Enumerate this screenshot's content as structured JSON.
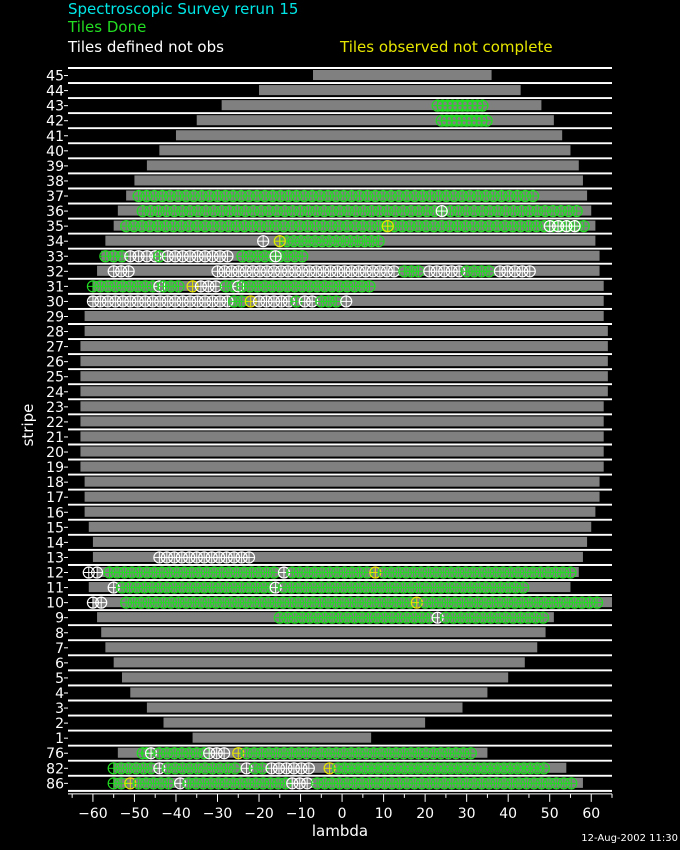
{
  "chart_data": {
    "type": "scatter",
    "title": "Spectroscopic Survey rerun 15",
    "legend": {
      "done": "Tiles Done",
      "defined_not_obs": "Tiles defined not obs",
      "observed_not_complete": "Tiles observed not complete"
    },
    "colors": {
      "background": "#000000",
      "title": "#00e6e6",
      "done": "#22dd22",
      "defined_not_obs": "#ffffff",
      "observed_not_complete": "#e6e600",
      "stripe_band": "#808080"
    },
    "xlabel": "lambda",
    "ylabel": "stripe",
    "timestamp": "12-Aug-2002 11:30",
    "xlim": [
      -66,
      65
    ],
    "xticks": [
      -60,
      -50,
      -40,
      -30,
      -20,
      -10,
      0,
      10,
      20,
      30,
      40,
      50,
      60
    ],
    "stripes": [
      {
        "label": "45",
        "range": [
          -7,
          36
        ]
      },
      {
        "label": "44",
        "range": [
          -20,
          43
        ]
      },
      {
        "label": "43",
        "range": [
          -29,
          48
        ]
      },
      {
        "label": "42",
        "range": [
          -35,
          51
        ]
      },
      {
        "label": "41",
        "range": [
          -40,
          53
        ]
      },
      {
        "label": "40",
        "range": [
          -44,
          55
        ]
      },
      {
        "label": "39",
        "range": [
          -47,
          57
        ]
      },
      {
        "label": "38",
        "range": [
          -50,
          58
        ]
      },
      {
        "label": "37",
        "range": [
          -52,
          59
        ]
      },
      {
        "label": "36",
        "range": [
          -54,
          60
        ]
      },
      {
        "label": "35",
        "range": [
          -55,
          61
        ]
      },
      {
        "label": "34",
        "range": [
          -57,
          61
        ]
      },
      {
        "label": "33",
        "range": [
          -58,
          62
        ]
      },
      {
        "label": "32",
        "range": [
          -59,
          62
        ]
      },
      {
        "label": "31",
        "range": [
          -60,
          63
        ]
      },
      {
        "label": "30",
        "range": [
          -61,
          63
        ]
      },
      {
        "label": "29",
        "range": [
          -62,
          63
        ]
      },
      {
        "label": "28",
        "range": [
          -62,
          64
        ]
      },
      {
        "label": "27",
        "range": [
          -63,
          64
        ]
      },
      {
        "label": "26",
        "range": [
          -63,
          64
        ]
      },
      {
        "label": "25",
        "range": [
          -63,
          64
        ]
      },
      {
        "label": "24",
        "range": [
          -63,
          64
        ]
      },
      {
        "label": "23",
        "range": [
          -63,
          63
        ]
      },
      {
        "label": "22",
        "range": [
          -63,
          63
        ]
      },
      {
        "label": "21",
        "range": [
          -63,
          63
        ]
      },
      {
        "label": "20",
        "range": [
          -63,
          63
        ]
      },
      {
        "label": "19",
        "range": [
          -63,
          63
        ]
      },
      {
        "label": "18",
        "range": [
          -62,
          62
        ]
      },
      {
        "label": "17",
        "range": [
          -62,
          62
        ]
      },
      {
        "label": "16",
        "range": [
          -62,
          61
        ]
      },
      {
        "label": "15",
        "range": [
          -61,
          60
        ]
      },
      {
        "label": "14",
        "range": [
          -60,
          59
        ]
      },
      {
        "label": "13",
        "range": [
          -60,
          58
        ]
      },
      {
        "label": "12",
        "range": [
          -59,
          57
        ]
      },
      {
        "label": "11",
        "range": [
          -61,
          55
        ]
      },
      {
        "label": "10",
        "range": [
          -60,
          65
        ]
      },
      {
        "label": "9",
        "range": [
          -59,
          51
        ]
      },
      {
        "label": "8",
        "range": [
          -58,
          49
        ]
      },
      {
        "label": "7",
        "range": [
          -57,
          47
        ]
      },
      {
        "label": "6",
        "range": [
          -55,
          44
        ]
      },
      {
        "label": "5",
        "range": [
          -53,
          40
        ]
      },
      {
        "label": "4",
        "range": [
          -51,
          35
        ]
      },
      {
        "label": "3",
        "range": [
          -47,
          29
        ]
      },
      {
        "label": "2",
        "range": [
          -43,
          20
        ]
      },
      {
        "label": "1",
        "range": [
          -36,
          7
        ]
      },
      {
        "label": "76",
        "range": [
          -54,
          35
        ]
      },
      {
        "label": "82",
        "range": [
          -55,
          54
        ]
      },
      {
        "label": "86",
        "range": [
          -55,
          58
        ]
      }
    ],
    "tiles": [
      {
        "stripe": "43",
        "status": "done",
        "from": 23,
        "to": 34,
        "step": 1.2
      },
      {
        "stripe": "42",
        "status": "done",
        "from": 24,
        "to": 35,
        "step": 1.2
      },
      {
        "stripe": "37",
        "status": "done",
        "from": -49,
        "to": 47,
        "step": 1.9
      },
      {
        "stripe": "36",
        "status": "done",
        "from": -48,
        "to": 58,
        "step": 1.9
      },
      {
        "stripe": "36",
        "status": "defined_not_obs",
        "from": 24,
        "to": 24,
        "step": 1
      },
      {
        "stripe": "35",
        "status": "done",
        "from": -52,
        "to": 59,
        "step": 1.9
      },
      {
        "stripe": "35",
        "status": "observed_not_complete",
        "from": 11,
        "to": 11,
        "step": 1
      },
      {
        "stripe": "35",
        "status": "defined_not_obs",
        "from": 50,
        "to": 56,
        "step": 2
      },
      {
        "stripe": "34",
        "status": "done",
        "from": -15,
        "to": 10,
        "step": 1.7
      },
      {
        "stripe": "34",
        "status": "defined_not_obs",
        "from": -19,
        "to": -19,
        "step": 1
      },
      {
        "stripe": "34",
        "status": "observed_not_complete",
        "from": -15,
        "to": -15,
        "step": 1
      },
      {
        "stripe": "33",
        "status": "done",
        "from": -57,
        "to": -52,
        "step": 2
      },
      {
        "stripe": "33",
        "status": "defined_not_obs",
        "from": -51,
        "to": -45,
        "step": 2
      },
      {
        "stripe": "33",
        "status": "done",
        "from": -44,
        "to": -44,
        "step": 1
      },
      {
        "stripe": "33",
        "status": "defined_not_obs",
        "from": -42,
        "to": -26,
        "step": 1.8
      },
      {
        "stripe": "33",
        "status": "done",
        "from": -24,
        "to": -9,
        "step": 1.8
      },
      {
        "stripe": "33",
        "status": "defined_not_obs",
        "from": -16,
        "to": -16,
        "step": 1
      },
      {
        "stripe": "32",
        "status": "defined_not_obs",
        "from": -55,
        "to": -50,
        "step": 1.8
      },
      {
        "stripe": "32",
        "status": "defined_not_obs",
        "from": -30,
        "to": 14,
        "step": 1.7
      },
      {
        "stripe": "32",
        "status": "done",
        "from": 15,
        "to": 20,
        "step": 1.7
      },
      {
        "stripe": "32",
        "status": "defined_not_obs",
        "from": 21,
        "to": 29,
        "step": 1.8
      },
      {
        "stripe": "32",
        "status": "done",
        "from": 30,
        "to": 37,
        "step": 1.8
      },
      {
        "stripe": "32",
        "status": "defined_not_obs",
        "from": 38,
        "to": 46,
        "step": 1.8
      },
      {
        "stripe": "31",
        "status": "done",
        "from": -60,
        "to": -45,
        "step": 1.8
      },
      {
        "stripe": "31",
        "status": "defined_not_obs",
        "from": -44,
        "to": -44,
        "step": 1
      },
      {
        "stripe": "31",
        "status": "done",
        "from": -43,
        "to": -38,
        "step": 1.8
      },
      {
        "stripe": "31",
        "status": "observed_not_complete",
        "from": -36,
        "to": -36,
        "step": 1
      },
      {
        "stripe": "31",
        "status": "defined_not_obs",
        "from": -34,
        "to": -29,
        "step": 1.8
      },
      {
        "stripe": "31",
        "status": "done",
        "from": -28,
        "to": -26,
        "step": 1.8
      },
      {
        "stripe": "31",
        "status": "defined_not_obs",
        "from": -25,
        "to": -25,
        "step": 1
      },
      {
        "stripe": "31",
        "status": "done",
        "from": -24,
        "to": 7,
        "step": 1.8
      },
      {
        "stripe": "30",
        "status": "defined_not_obs",
        "from": -60,
        "to": -27,
        "step": 1.8
      },
      {
        "stripe": "30",
        "status": "done",
        "from": -26,
        "to": -23,
        "step": 1.8
      },
      {
        "stripe": "30",
        "status": "observed_not_complete",
        "from": -22,
        "to": -22,
        "step": 1
      },
      {
        "stripe": "30",
        "status": "defined_not_obs",
        "from": -20,
        "to": -12,
        "step": 1.8
      },
      {
        "stripe": "30",
        "status": "done",
        "from": -11,
        "to": -11,
        "step": 1
      },
      {
        "stripe": "30",
        "status": "defined_not_obs",
        "from": -9,
        "to": -7,
        "step": 1.8
      },
      {
        "stripe": "30",
        "status": "done",
        "from": -5,
        "to": -1,
        "step": 1.8
      },
      {
        "stripe": "30",
        "status": "defined_not_obs",
        "from": 1,
        "to": 1,
        "step": 1
      },
      {
        "stripe": "13",
        "status": "defined_not_obs",
        "from": -44,
        "to": -21,
        "step": 1.8
      },
      {
        "stripe": "12",
        "status": "defined_not_obs",
        "from": -61,
        "to": -58,
        "step": 2
      },
      {
        "stripe": "12",
        "status": "done",
        "from": -56,
        "to": -16,
        "step": 1.8
      },
      {
        "stripe": "12",
        "status": "defined_not_obs",
        "from": -14,
        "to": -14,
        "step": 1
      },
      {
        "stripe": "12",
        "status": "done",
        "from": -12,
        "to": 6,
        "step": 1.8
      },
      {
        "stripe": "12",
        "status": "observed_not_complete",
        "from": 8,
        "to": 8,
        "step": 1
      },
      {
        "stripe": "12",
        "status": "done",
        "from": 10,
        "to": 55,
        "step": 1.8
      },
      {
        "stripe": "11",
        "status": "defined_not_obs",
        "from": -55,
        "to": -55,
        "step": 1
      },
      {
        "stripe": "11",
        "status": "done",
        "from": -53,
        "to": -17,
        "step": 1.8
      },
      {
        "stripe": "11",
        "status": "defined_not_obs",
        "from": -16,
        "to": -16,
        "step": 1
      },
      {
        "stripe": "11",
        "status": "done",
        "from": -14,
        "to": 44,
        "step": 1.8
      },
      {
        "stripe": "10",
        "status": "defined_not_obs",
        "from": -60,
        "to": -57,
        "step": 2
      },
      {
        "stripe": "10",
        "status": "done",
        "from": -52,
        "to": 17,
        "step": 1.8
      },
      {
        "stripe": "10",
        "status": "observed_not_complete",
        "from": 18,
        "to": 18,
        "step": 1
      },
      {
        "stripe": "10",
        "status": "done",
        "from": 20,
        "to": 63,
        "step": 1.8
      },
      {
        "stripe": "9",
        "status": "done",
        "from": -15,
        "to": 22,
        "step": 1.8
      },
      {
        "stripe": "9",
        "status": "defined_not_obs",
        "from": 23,
        "to": 23,
        "step": 1
      },
      {
        "stripe": "9",
        "status": "done",
        "from": 25,
        "to": 50,
        "step": 1.8
      },
      {
        "stripe": "76",
        "status": "done",
        "from": -48,
        "to": -47,
        "step": 1
      },
      {
        "stripe": "76",
        "status": "defined_not_obs",
        "from": -46,
        "to": -46,
        "step": 1
      },
      {
        "stripe": "76",
        "status": "done",
        "from": -44,
        "to": -33,
        "step": 1.8
      },
      {
        "stripe": "76",
        "status": "defined_not_obs",
        "from": -32,
        "to": -28,
        "step": 1.8
      },
      {
        "stripe": "76",
        "status": "observed_not_complete",
        "from": -25,
        "to": -25,
        "step": 1
      },
      {
        "stripe": "76",
        "status": "done",
        "from": -23,
        "to": 32,
        "step": 1.8
      },
      {
        "stripe": "82",
        "status": "done",
        "from": -55,
        "to": -46,
        "step": 1.8
      },
      {
        "stripe": "82",
        "status": "defined_not_obs",
        "from": -44,
        "to": -44,
        "step": 1
      },
      {
        "stripe": "82",
        "status": "done",
        "from": -42,
        "to": -25,
        "step": 1.8
      },
      {
        "stripe": "82",
        "status": "defined_not_obs",
        "from": -23,
        "to": -23,
        "step": 1
      },
      {
        "stripe": "82",
        "status": "done",
        "from": -21,
        "to": -19,
        "step": 1.8
      },
      {
        "stripe": "82",
        "status": "defined_not_obs",
        "from": -17,
        "to": -7,
        "step": 1.8
      },
      {
        "stripe": "82",
        "status": "observed_not_complete",
        "from": -3,
        "to": -3,
        "step": 1
      },
      {
        "stripe": "82",
        "status": "done",
        "from": -1,
        "to": 50,
        "step": 1.6
      },
      {
        "stripe": "86",
        "status": "done",
        "from": -55,
        "to": -53,
        "step": 1.8
      },
      {
        "stripe": "86",
        "status": "observed_not_complete",
        "from": -51,
        "to": -51,
        "step": 1
      },
      {
        "stripe": "86",
        "status": "done",
        "from": -49,
        "to": -41,
        "step": 1.8
      },
      {
        "stripe": "86",
        "status": "defined_not_obs",
        "from": -39,
        "to": -39,
        "step": 1
      },
      {
        "stripe": "86",
        "status": "done",
        "from": -37,
        "to": -13,
        "step": 1.8
      },
      {
        "stripe": "86",
        "status": "defined_not_obs",
        "from": -12,
        "to": -8,
        "step": 1.8
      },
      {
        "stripe": "86",
        "status": "done",
        "from": -6,
        "to": 56,
        "step": 1.8
      }
    ]
  }
}
